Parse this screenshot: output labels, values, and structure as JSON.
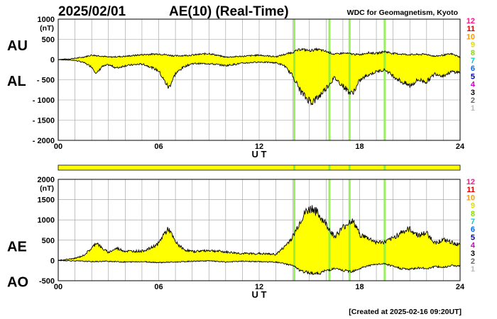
{
  "header": {
    "date": "2025/02/01",
    "title": "AE(10) (Real-Time)",
    "source": "WDC for Geomagnetism, Kyoto",
    "created": "[Created at 2025-02-16 09:20UT]"
  },
  "colors": {
    "fill": "#ffff00",
    "line": "#000000",
    "grid": "#999999",
    "gap": "#88ee44"
  },
  "station_legend": {
    "numbers": [
      "12",
      "11",
      "10",
      "9",
      "8",
      "7",
      "6",
      "5",
      "4",
      "3",
      "2",
      "1"
    ],
    "colors": [
      "#ff1493",
      "#dd0000",
      "#ff9900",
      "#dddd00",
      "#88dd00",
      "#00cccc",
      "#0066ff",
      "#0000aa",
      "#cc00cc",
      "#000000",
      "#666666",
      "#bbbbbb"
    ]
  },
  "chart_data": [
    {
      "type": "area",
      "id": "au_al",
      "series": [
        {
          "name": "AU"
        },
        {
          "name": "AL"
        }
      ],
      "left_labels": [
        "AU",
        "AL"
      ],
      "ylabel": "(nT)",
      "xlabel": "U T",
      "x_ticks": [
        "00",
        "06",
        "12",
        "18",
        "24"
      ],
      "y_tick_values": [
        1000,
        500,
        0,
        -500,
        -1000,
        -1500,
        -2000
      ],
      "y_tick_labels": [
        "1000",
        "500",
        "0",
        "- 500",
        "- 1000",
        "- 1500",
        "- 2000"
      ],
      "xlim": [
        0,
        24
      ],
      "ylim": [
        -2000,
        1000
      ],
      "grid": true,
      "upper_keypoints": [
        [
          0,
          0
        ],
        [
          0.5,
          10
        ],
        [
          1,
          30
        ],
        [
          1.5,
          60
        ],
        [
          2,
          110
        ],
        [
          2.5,
          90
        ],
        [
          3,
          60
        ],
        [
          4,
          80
        ],
        [
          5,
          120
        ],
        [
          6,
          140
        ],
        [
          7,
          90
        ],
        [
          8,
          110
        ],
        [
          9,
          150
        ],
        [
          10,
          60
        ],
        [
          11,
          80
        ],
        [
          12,
          110
        ],
        [
          13,
          70
        ],
        [
          14,
          180
        ],
        [
          14.5,
          260
        ],
        [
          15,
          220
        ],
        [
          15.5,
          250
        ],
        [
          16,
          200
        ],
        [
          16.5,
          130
        ],
        [
          17,
          160
        ],
        [
          17.5,
          140
        ],
        [
          18,
          120
        ],
        [
          18.5,
          170
        ],
        [
          19,
          150
        ],
        [
          19.5,
          200
        ],
        [
          20,
          150
        ],
        [
          21,
          120
        ],
        [
          22,
          130
        ],
        [
          22.5,
          80
        ],
        [
          23,
          110
        ],
        [
          23.5,
          140
        ],
        [
          24,
          60
        ]
      ],
      "lower_keypoints": [
        [
          0,
          0
        ],
        [
          1,
          -20
        ],
        [
          1.5,
          -70
        ],
        [
          2,
          -180
        ],
        [
          2.3,
          -350
        ],
        [
          2.6,
          -180
        ],
        [
          3,
          -130
        ],
        [
          3.5,
          -210
        ],
        [
          4,
          -150
        ],
        [
          5,
          -110
        ],
        [
          5.5,
          -180
        ],
        [
          6,
          -280
        ],
        [
          6.3,
          -500
        ],
        [
          6.6,
          -700
        ],
        [
          7,
          -350
        ],
        [
          7.5,
          -180
        ],
        [
          8,
          -100
        ],
        [
          9,
          -100
        ],
        [
          10,
          -150
        ],
        [
          11,
          -90
        ],
        [
          12,
          -60
        ],
        [
          13,
          -80
        ],
        [
          13.5,
          -150
        ],
        [
          14,
          -400
        ],
        [
          14.5,
          -800
        ],
        [
          14.8,
          -950
        ],
        [
          15.2,
          -1050
        ],
        [
          15.6,
          -900
        ],
        [
          16,
          -700
        ],
        [
          16.5,
          -450
        ],
        [
          17,
          -650
        ],
        [
          17.5,
          -850
        ],
        [
          17.8,
          -700
        ],
        [
          18,
          -520
        ],
        [
          18.5,
          -380
        ],
        [
          19,
          -300
        ],
        [
          19.5,
          -250
        ],
        [
          20,
          -400
        ],
        [
          20.5,
          -550
        ],
        [
          21,
          -650
        ],
        [
          21.5,
          -500
        ],
        [
          22,
          -550
        ],
        [
          22.5,
          -350
        ],
        [
          23,
          -400
        ],
        [
          23.5,
          -300
        ],
        [
          24,
          -320
        ]
      ]
    },
    {
      "type": "area",
      "id": "ae_ao",
      "series": [
        {
          "name": "AE"
        },
        {
          "name": "AO"
        }
      ],
      "left_labels": [
        "AE",
        "AO"
      ],
      "ylabel": "(nT)",
      "xlabel": "U T",
      "x_ticks": [
        "00",
        "06",
        "12",
        "18",
        "24"
      ],
      "y_tick_values": [
        2000,
        1500,
        1000,
        500,
        0,
        -500
      ],
      "y_tick_labels": [
        "2000",
        "1500",
        "1000",
        "500",
        "0",
        "-500"
      ],
      "xlim": [
        0,
        24
      ],
      "ylim": [
        -500,
        2000
      ],
      "grid": true,
      "upper_keypoints": [
        [
          0,
          0
        ],
        [
          1,
          50
        ],
        [
          1.5,
          120
        ],
        [
          2,
          300
        ],
        [
          2.3,
          450
        ],
        [
          2.6,
          300
        ],
        [
          3,
          200
        ],
        [
          3.5,
          300
        ],
        [
          4,
          230
        ],
        [
          5,
          230
        ],
        [
          5.5,
          300
        ],
        [
          6,
          420
        ],
        [
          6.3,
          650
        ],
        [
          6.6,
          780
        ],
        [
          7,
          450
        ],
        [
          7.5,
          270
        ],
        [
          8,
          220
        ],
        [
          9,
          250
        ],
        [
          10,
          210
        ],
        [
          11,
          170
        ],
        [
          12,
          170
        ],
        [
          13,
          150
        ],
        [
          13.5,
          330
        ],
        [
          14,
          580
        ],
        [
          14.5,
          1000
        ],
        [
          14.8,
          1200
        ],
        [
          15.2,
          1300
        ],
        [
          15.6,
          1100
        ],
        [
          16,
          900
        ],
        [
          16.5,
          580
        ],
        [
          17,
          810
        ],
        [
          17.5,
          990
        ],
        [
          17.8,
          840
        ],
        [
          18,
          640
        ],
        [
          18.5,
          550
        ],
        [
          19,
          450
        ],
        [
          19.5,
          450
        ],
        [
          20,
          550
        ],
        [
          20.5,
          700
        ],
        [
          21,
          770
        ],
        [
          21.5,
          620
        ],
        [
          22,
          680
        ],
        [
          22.5,
          430
        ],
        [
          23,
          510
        ],
        [
          23.5,
          440
        ],
        [
          24,
          380
        ]
      ],
      "lower_keypoints": [
        [
          0,
          0
        ],
        [
          1,
          -10
        ],
        [
          2,
          -30
        ],
        [
          3,
          -20
        ],
        [
          4,
          -40
        ],
        [
          5,
          -30
        ],
        [
          6,
          -50
        ],
        [
          7,
          -40
        ],
        [
          8,
          -20
        ],
        [
          9,
          -10
        ],
        [
          10,
          -40
        ],
        [
          11,
          -20
        ],
        [
          12,
          -30
        ],
        [
          13,
          -40
        ],
        [
          14,
          -120
        ],
        [
          14.5,
          -270
        ],
        [
          15,
          -300
        ],
        [
          15.5,
          -330
        ],
        [
          16,
          -250
        ],
        [
          16.5,
          -200
        ],
        [
          17,
          -250
        ],
        [
          17.5,
          -270
        ],
        [
          18,
          -200
        ],
        [
          18.5,
          -130
        ],
        [
          19,
          -100
        ],
        [
          19.5,
          -80
        ],
        [
          20,
          -150
        ],
        [
          20.5,
          -200
        ],
        [
          21,
          -220
        ],
        [
          21.5,
          -180
        ],
        [
          22,
          -200
        ],
        [
          22.5,
          -150
        ],
        [
          23,
          -170
        ],
        [
          23.5,
          -120
        ],
        [
          24,
          -140
        ]
      ]
    }
  ],
  "data_gap_marks_ut": [
    14.1,
    16.2,
    17.4,
    19.5
  ],
  "strip_gap_marks_ut": [
    14.1,
    16.2,
    17.4,
    19.5
  ]
}
